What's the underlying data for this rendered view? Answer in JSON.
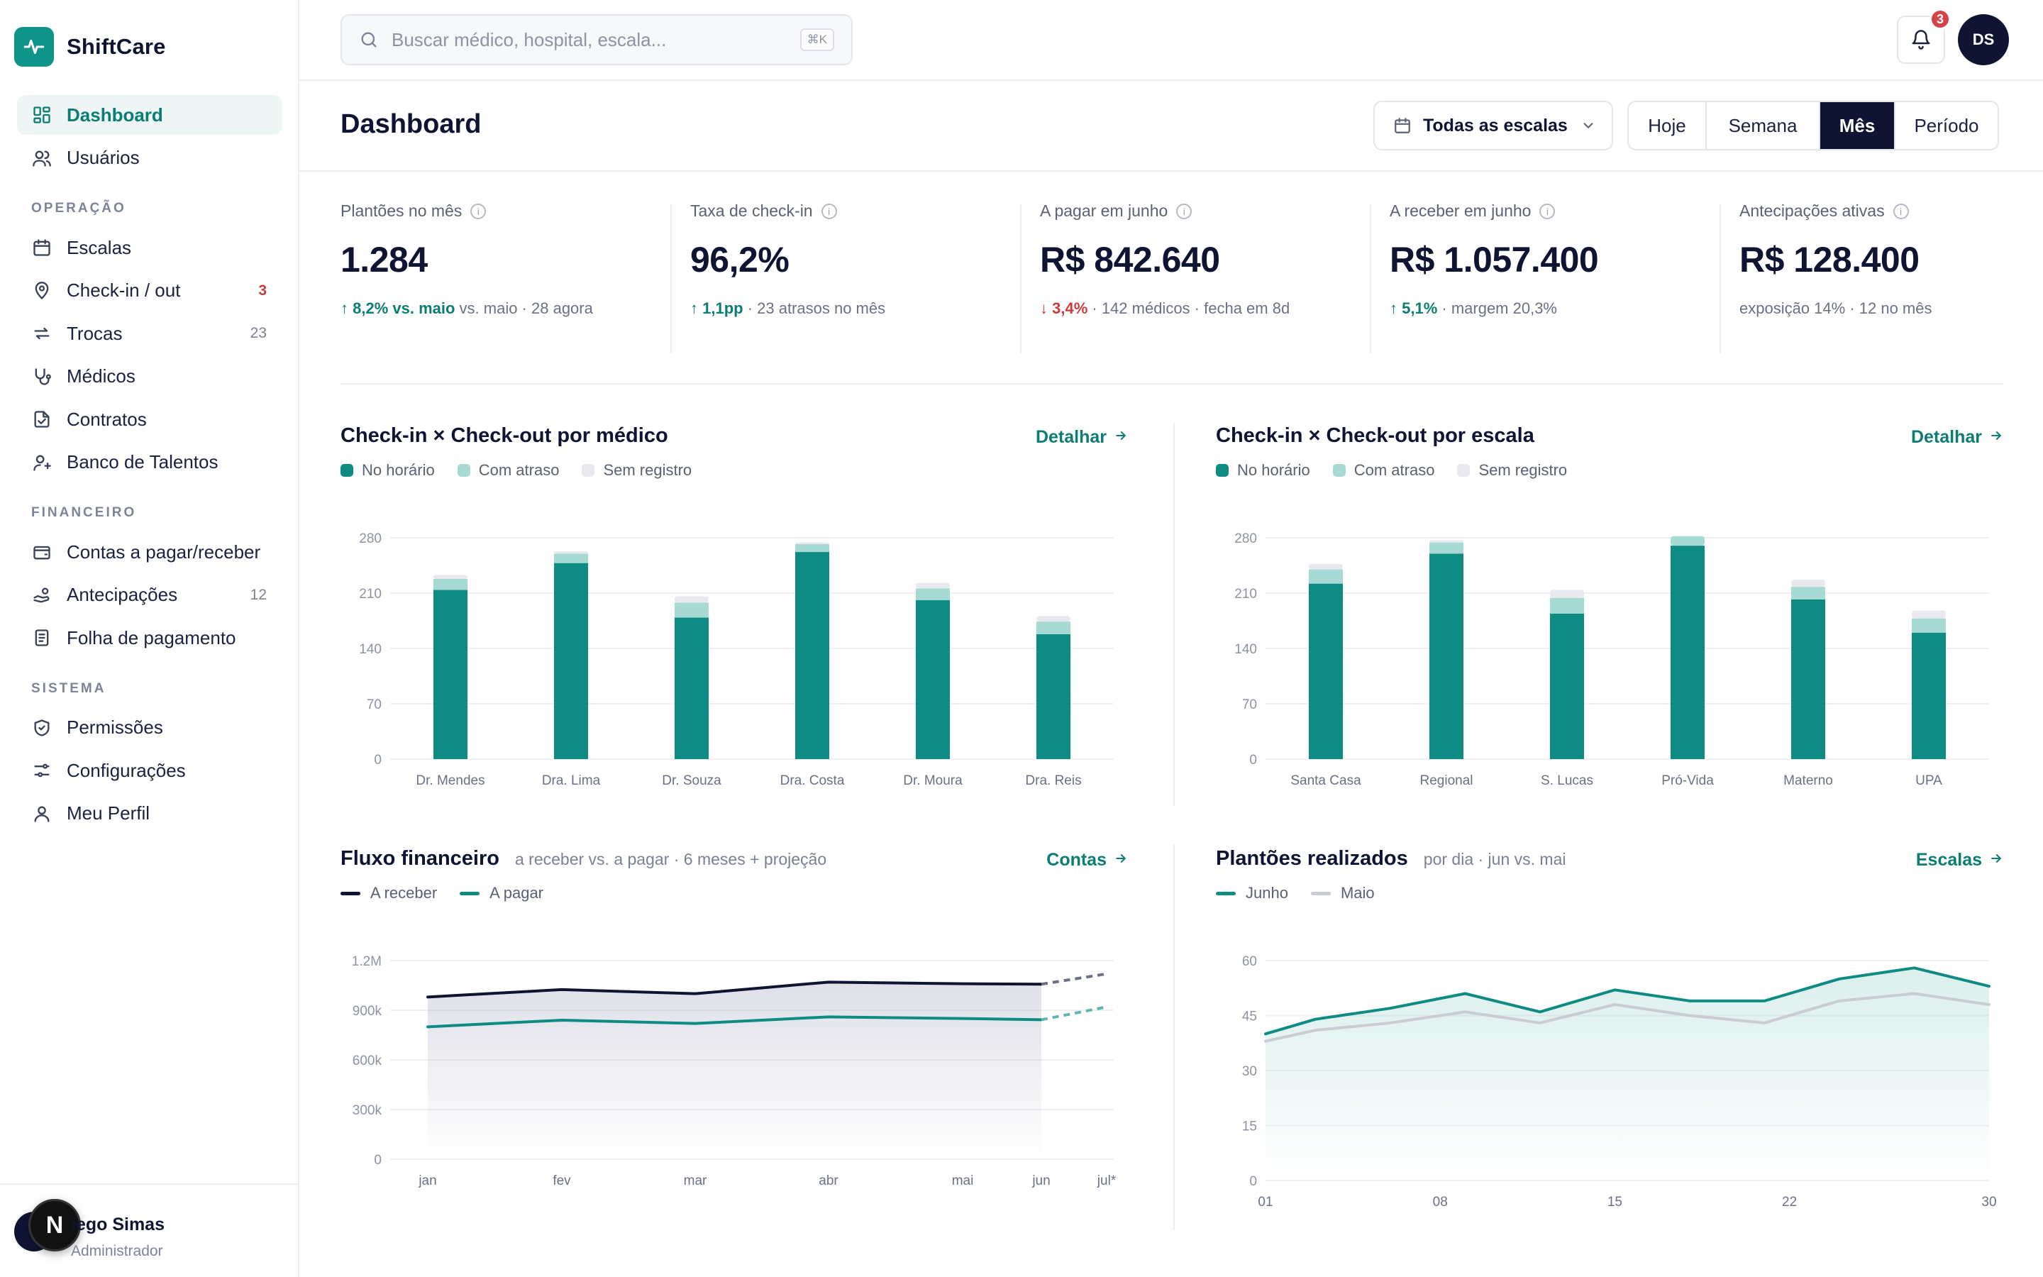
{
  "brand": {
    "name": "ShiftCare"
  },
  "sidebar": {
    "top_items": [
      {
        "label": "Dashboard",
        "icon": "dashboard-icon",
        "active": true
      },
      {
        "label": "Usuários",
        "icon": "users-icon"
      }
    ],
    "sections": [
      {
        "title": "OPERAÇÃO",
        "items": [
          {
            "label": "Escalas",
            "icon": "calendar-icon",
            "badge": ""
          },
          {
            "label": "Check-in / out",
            "icon": "location-pin-icon",
            "badge": "3"
          },
          {
            "label": "Trocas",
            "icon": "swap-icon",
            "badge": "23"
          },
          {
            "label": "Médicos",
            "icon": "stethoscope-icon",
            "badge": ""
          },
          {
            "label": "Contratos",
            "icon": "contract-icon",
            "badge": ""
          },
          {
            "label": "Banco de Talentos",
            "icon": "talent-icon",
            "badge": ""
          }
        ]
      },
      {
        "title": "FINANCEIRO",
        "items": [
          {
            "label": "Contas a pagar/receber",
            "icon": "wallet-icon",
            "badge": ""
          },
          {
            "label": "Antecipações",
            "icon": "hand-coins-icon",
            "badge": "12"
          },
          {
            "label": "Folha de pagamento",
            "icon": "payroll-icon",
            "badge": ""
          }
        ]
      },
      {
        "title": "SISTEMA",
        "items": [
          {
            "label": "Permissões",
            "icon": "shield-check-icon",
            "badge": ""
          },
          {
            "label": "Configurações",
            "icon": "sliders-icon",
            "badge": ""
          },
          {
            "label": "Meu Perfil",
            "icon": "user-icon",
            "badge": ""
          }
        ]
      }
    ],
    "user": {
      "name": "iego Simas",
      "role": "Administrador",
      "overlay_badge": "N"
    }
  },
  "topbar": {
    "search_placeholder": "Buscar médico, hospital, escala...",
    "search_shortcut": "⌘K",
    "notification_count": "3",
    "avatar_initials": "DS"
  },
  "header": {
    "title": "Dashboard",
    "scale_filter": "Todas as escalas",
    "periods": [
      "Hoje",
      "Semana",
      "Mês",
      "Período"
    ],
    "active_period": "Mês"
  },
  "kpis": [
    {
      "label": "Plantões no mês",
      "value": "1.284",
      "delta": "↑ 8,2% vs. maio",
      "delta_dir": "up",
      "rest": " vs. maio · 28 agora"
    },
    {
      "label": "Taxa de check-in",
      "value": "96,2%",
      "delta": "↑ 1,1pp",
      "delta_dir": "up",
      "rest": " · 23 atrasos no mês"
    },
    {
      "label": "A pagar em junho",
      "value": "R$ 842.640",
      "delta": "↓ 3,4%",
      "delta_dir": "down",
      "rest": " · 142 médicos · fecha em 8d"
    },
    {
      "label": "A receber em junho",
      "value": "R$ 1.057.400",
      "delta": "↑ 5,1%",
      "delta_dir": "up",
      "rest": " · margem 20,3%"
    },
    {
      "label": "Antecipações ativas",
      "value": "R$ 128.400",
      "delta": "",
      "delta_dir": "",
      "rest": "exposição 14% · 12 no mês"
    }
  ],
  "colors": {
    "teal": "#0e8c84",
    "teal_light": "#a8dad5",
    "gray_light": "#e8e9ee",
    "navy": "#0f1433",
    "gray_line": "#c9ccd3"
  },
  "chart_data": [
    {
      "type": "bar",
      "title": "Check-in × Check-out por médico",
      "link": "Detalhar",
      "categories": [
        "Dr. Mendes",
        "Dra. Lima",
        "Dr. Souza",
        "Dra. Costa",
        "Dr. Moura",
        "Dra. Reis"
      ],
      "series": [
        {
          "name": "No horário",
          "values": [
            214,
            248,
            179,
            262,
            201,
            158
          ]
        },
        {
          "name": "Com atraso",
          "values": [
            14,
            12,
            19,
            10,
            15,
            16
          ]
        },
        {
          "name": "Sem registro",
          "values": [
            5,
            3,
            8,
            2,
            7,
            7
          ]
        }
      ],
      "yticks": [
        0,
        70,
        140,
        210,
        280
      ],
      "ylim": [
        0,
        280
      ],
      "stacked": true
    },
    {
      "type": "bar",
      "title": "Check-in × Check-out por escala",
      "link": "Detalhar",
      "categories": [
        "Santa Casa",
        "Regional",
        "S. Lucas",
        "Pró-Vida",
        "Materno",
        "UPA"
      ],
      "series": [
        {
          "name": "No horário",
          "values": [
            222,
            260,
            184,
            270,
            202,
            160
          ]
        },
        {
          "name": "Com atraso",
          "values": [
            18,
            14,
            20,
            12,
            16,
            18
          ]
        },
        {
          "name": "Sem registro",
          "values": [
            7,
            3,
            10,
            0,
            9,
            10
          ]
        }
      ],
      "yticks": [
        0,
        70,
        140,
        210,
        280
      ],
      "ylim": [
        0,
        280
      ],
      "stacked": true
    },
    {
      "type": "line",
      "title": "Fluxo financeiro",
      "subtitle": "a receber vs. a pagar · 6 meses + projeção",
      "link": "Contas",
      "x": [
        "jan",
        "fev",
        "mar",
        "abr",
        "mai",
        "jun",
        "jul*"
      ],
      "series": [
        {
          "name": "A receber",
          "values": [
            980000,
            1025000,
            1000000,
            1070000,
            1060000,
            1057400,
            1120000
          ],
          "projected_from": 5
        },
        {
          "name": "A pagar",
          "values": [
            800000,
            840000,
            820000,
            860000,
            850000,
            842640,
            920000
          ],
          "projected_from": 5
        }
      ],
      "yticks": [
        "0",
        "300k",
        "600k",
        "900k",
        "1.2M"
      ],
      "ytick_values": [
        0,
        300000,
        600000,
        900000,
        1200000
      ],
      "ylim": [
        0,
        1200000
      ]
    },
    {
      "type": "line",
      "title": "Plantões realizados",
      "subtitle": "por dia · jun vs. mai",
      "link": "Escalas",
      "x": [
        1,
        3,
        6,
        9,
        12,
        15,
        18,
        21,
        24,
        27,
        30
      ],
      "xticks": [
        "01",
        "08",
        "15",
        "22",
        "30"
      ],
      "xtick_values": [
        1,
        8,
        15,
        22,
        30
      ],
      "series": [
        {
          "name": "Junho",
          "values": [
            40,
            44,
            47,
            51,
            46,
            52,
            49,
            49,
            55,
            58,
            53
          ]
        },
        {
          "name": "Maio",
          "values": [
            38,
            41,
            43,
            46,
            43,
            48,
            45,
            43,
            49,
            51,
            48
          ]
        }
      ],
      "yticks": [
        0,
        15,
        30,
        45,
        60
      ],
      "ylim": [
        0,
        60
      ]
    }
  ]
}
